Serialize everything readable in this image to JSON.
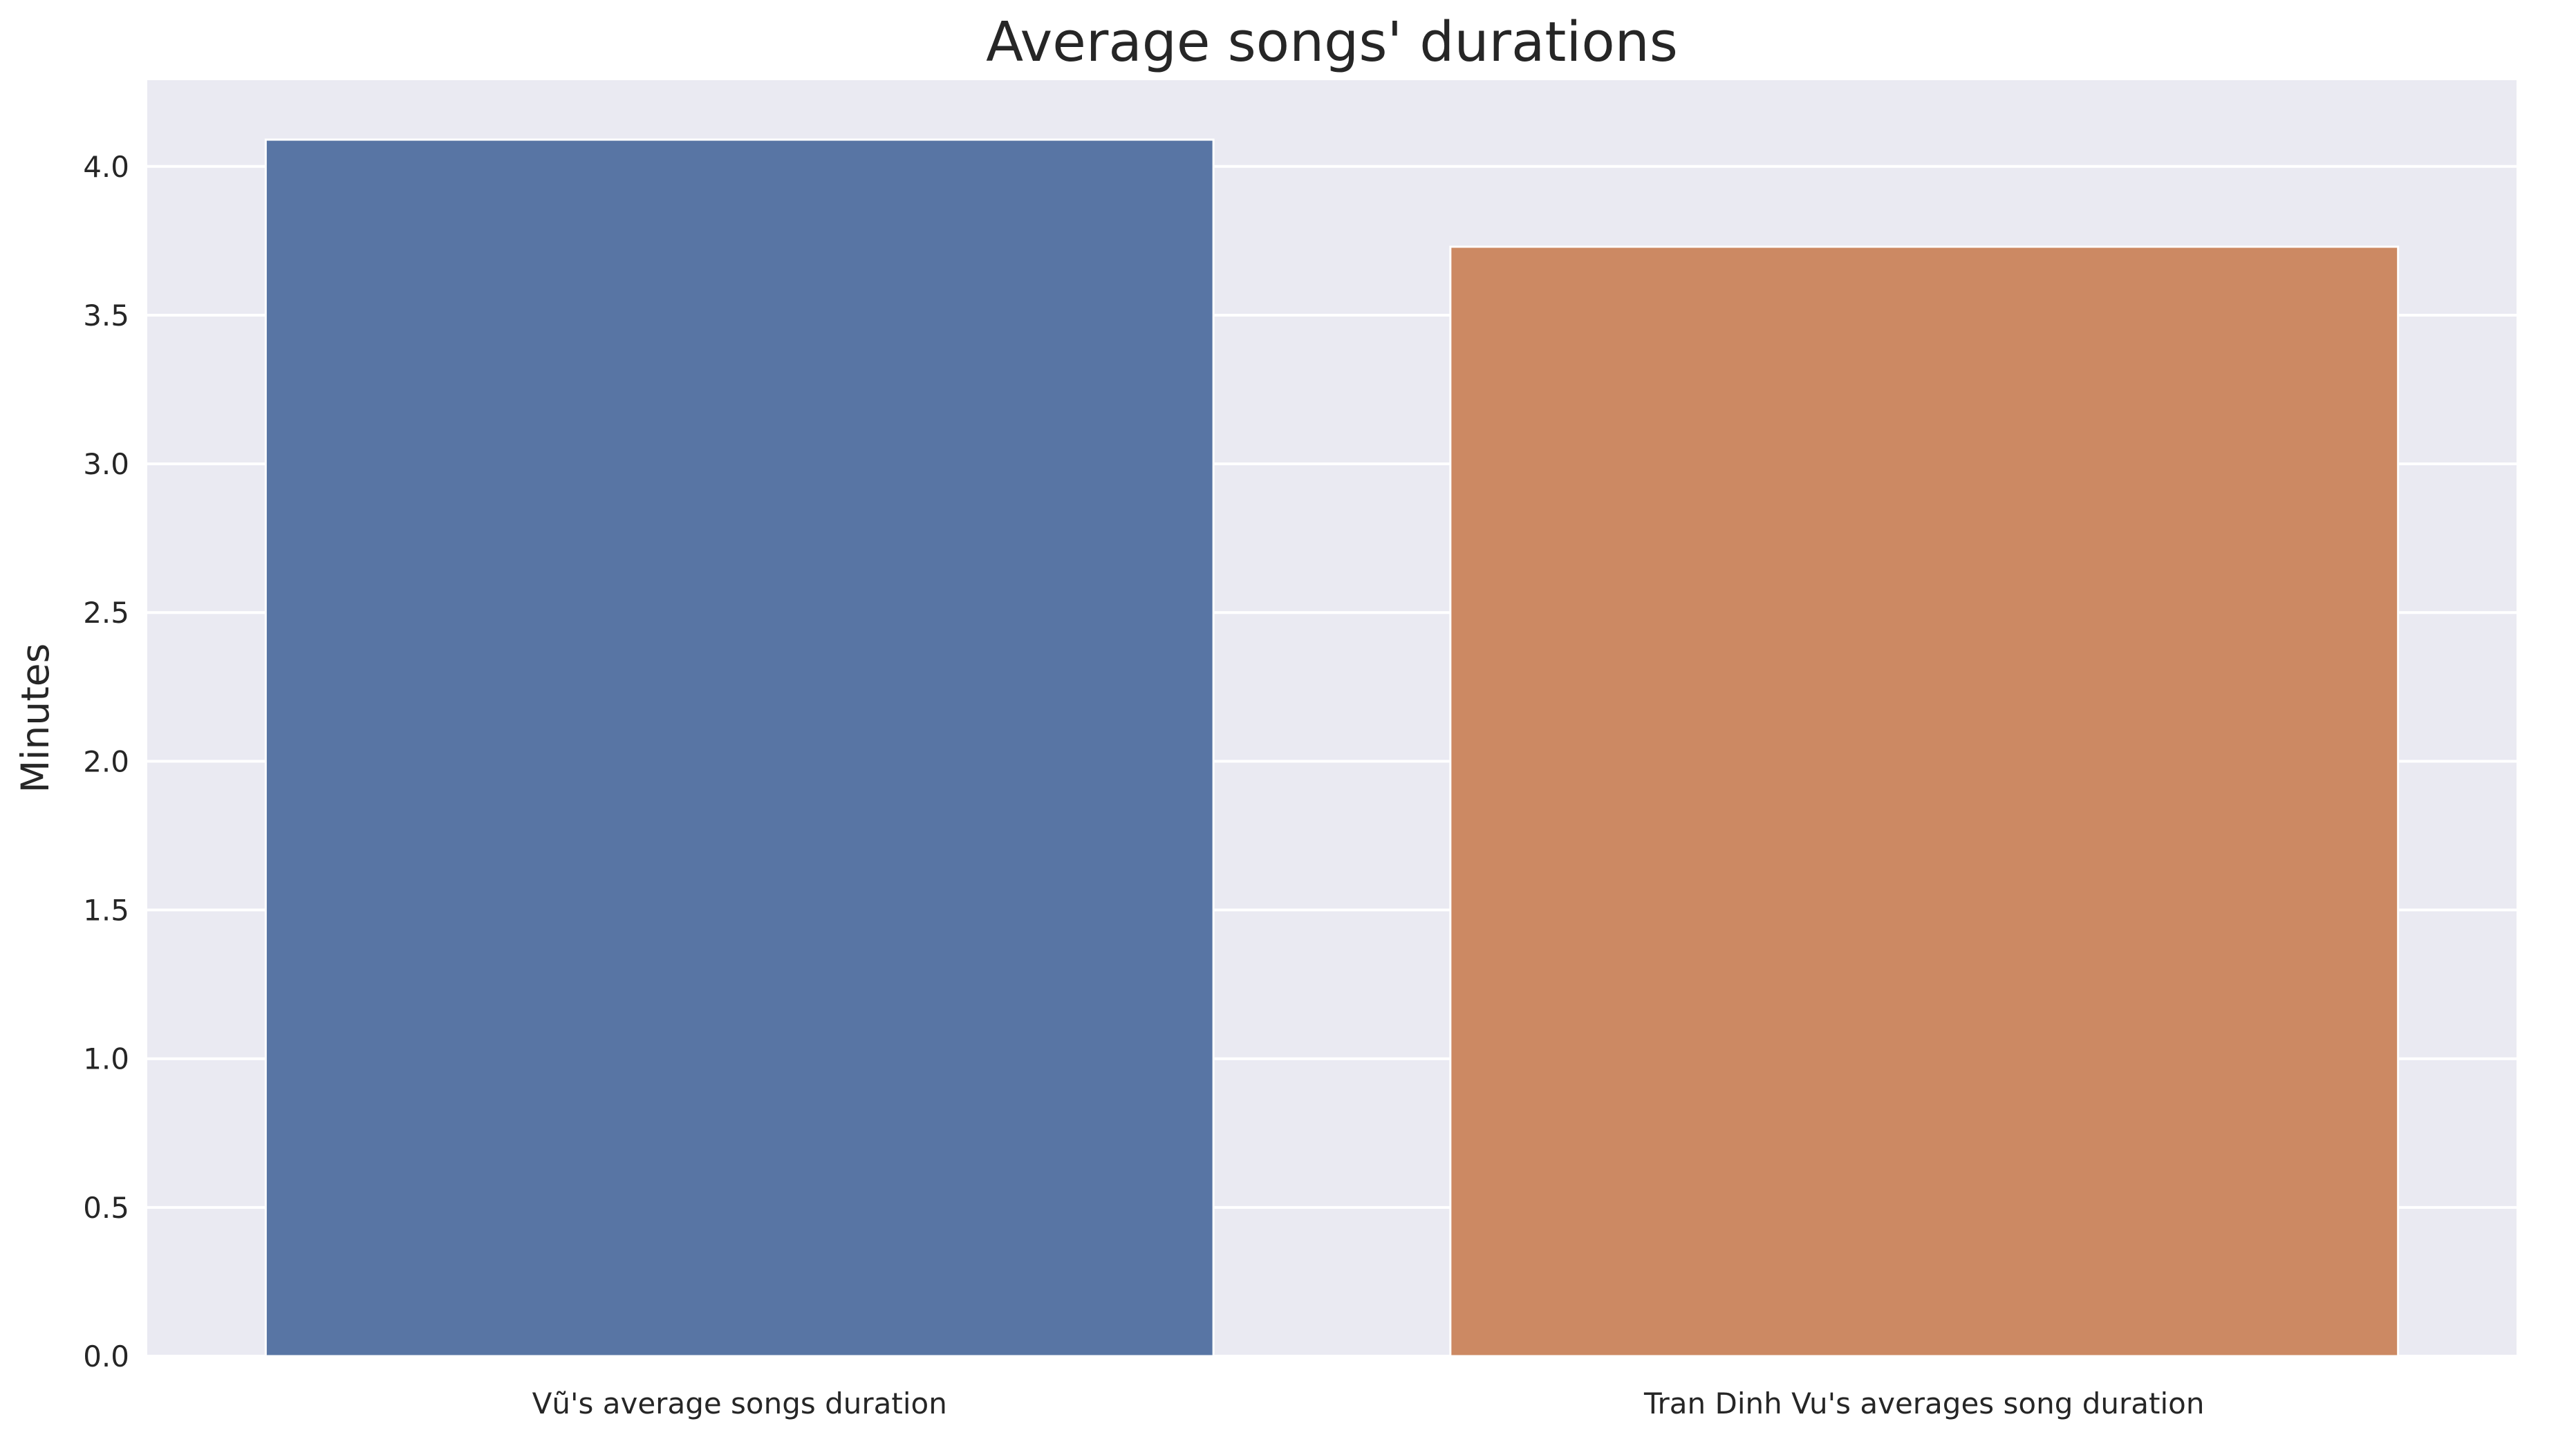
{
  "chart_data": {
    "type": "bar",
    "title": "Average songs' durations",
    "xlabel": "",
    "ylabel": "Minutes",
    "categories": [
      "Vũ's average songs duration",
      "Tran Dinh Vu's averages song duration"
    ],
    "values": [
      4.09,
      3.73
    ],
    "ylim": [
      0,
      4.29
    ],
    "yticks": [
      0.0,
      0.5,
      1.0,
      1.5,
      2.0,
      2.5,
      3.0,
      3.5,
      4.0
    ],
    "ytick_labels": [
      "0.0",
      "0.5",
      "1.0",
      "1.5",
      "2.0",
      "2.5",
      "3.0",
      "3.5",
      "4.0"
    ],
    "grid": true,
    "legend": "none",
    "colors": {
      "background": "#eaeaf2",
      "grid": "#ffffff",
      "bars": [
        "#5875a4",
        "#cc8963"
      ]
    }
  }
}
